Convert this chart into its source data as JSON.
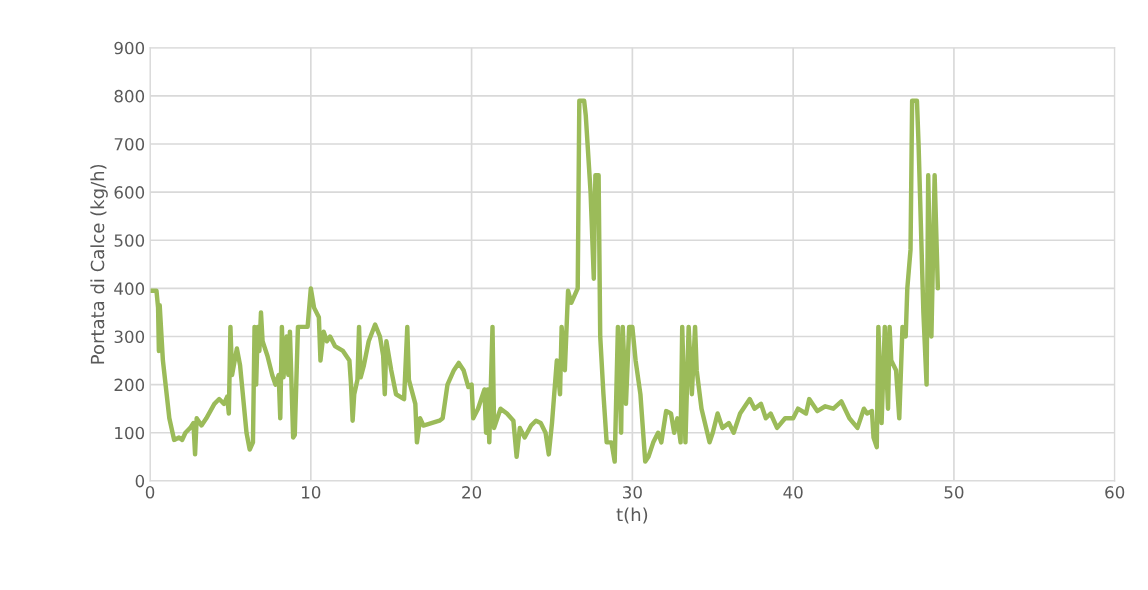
{
  "chart_data": {
    "type": "line",
    "xlabel": "t(h)",
    "ylabel": "Portata di Calce (kg/h)",
    "xlim": [
      0,
      60
    ],
    "xticks": [
      0,
      10,
      20,
      30,
      40,
      50,
      60
    ],
    "ylim": [
      0,
      900
    ],
    "yticks": [
      0,
      100,
      200,
      300,
      400,
      500,
      600,
      700,
      800,
      900
    ],
    "grid": true,
    "marker": "none",
    "line_style": "solid",
    "series": [
      {
        "color": "#9bbb59",
        "x": [
          0,
          0.4,
          0.5,
          0.55,
          0.6,
          0.8,
          1.2,
          1.5,
          1.8,
          2.0,
          2.2,
          2.5,
          2.7,
          2.8,
          2.9,
          3.2,
          3.5,
          4.0,
          4.3,
          4.6,
          4.8,
          4.9,
          5.0,
          5.1,
          5.4,
          5.6,
          6.0,
          6.2,
          6.4,
          6.5,
          6.6,
          6.7,
          6.8,
          6.9,
          7.0,
          7.3,
          7.6,
          7.8,
          8.0,
          8.1,
          8.2,
          8.3,
          8.5,
          8.6,
          8.7,
          8.9,
          9.0,
          9.2,
          9.8,
          10.0,
          10.2,
          10.5,
          10.6,
          10.8,
          11.0,
          11.2,
          11.5,
          12.0,
          12.4,
          12.5,
          12.6,
          12.7,
          12.9,
          13.0,
          13.1,
          13.3,
          13.6,
          14.0,
          14.3,
          14.5,
          14.6,
          14.7,
          15.0,
          15.3,
          15.8,
          16.0,
          16.1,
          16.5,
          16.6,
          16.8,
          17.0,
          17.5,
          18.0,
          18.2,
          18.5,
          18.9,
          19.2,
          19.5,
          19.8,
          20.0,
          20.1,
          20.4,
          20.8,
          20.9,
          21.0,
          21.1,
          21.3,
          21.4,
          21.8,
          22.2,
          22.6,
          22.8,
          23.0,
          23.3,
          23.7,
          24.0,
          24.3,
          24.6,
          24.8,
          25.0,
          25.3,
          25.5,
          25.6,
          25.8,
          26.0,
          26.2,
          26.6,
          26.7,
          27.0,
          27.1,
          27.4,
          27.6,
          27.7,
          27.9,
          28.0,
          28.2,
          28.4,
          28.7,
          28.9,
          29.1,
          29.3,
          29.4,
          29.6,
          29.8,
          30.0,
          30.2,
          30.5,
          30.8,
          31.0,
          31.3,
          31.6,
          31.8,
          32.1,
          32.4,
          32.6,
          32.8,
          33.0,
          33.1,
          33.3,
          33.5,
          33.7,
          33.9,
          34.0,
          34.3,
          34.8,
          35.0,
          35.3,
          35.6,
          36.0,
          36.3,
          36.7,
          37.0,
          37.3,
          37.6,
          38.0,
          38.3,
          38.6,
          39.0,
          39.5,
          40.0,
          40.3,
          40.8,
          41.0,
          41.5,
          42.0,
          42.5,
          43.0,
          43.5,
          44.0,
          44.4,
          44.6,
          44.9,
          45.0,
          45.2,
          45.3,
          45.5,
          45.7,
          45.9,
          46.0,
          46.1,
          46.4,
          46.6,
          46.8,
          47.0,
          47.1,
          47.3,
          47.4,
          47.7,
          47.8,
          48.1,
          48.3,
          48.4,
          48.6,
          48.8,
          49.0
        ],
        "values": [
          395,
          395,
          360,
          270,
          365,
          250,
          130,
          85,
          90,
          85,
          100,
          110,
          120,
          55,
          130,
          115,
          130,
          160,
          170,
          160,
          175,
          140,
          320,
          220,
          275,
          240,
          100,
          65,
          80,
          320,
          200,
          320,
          270,
          350,
          290,
          260,
          220,
          200,
          220,
          130,
          320,
          215,
          300,
          220,
          310,
          90,
          95,
          320,
          320,
          400,
          360,
          340,
          250,
          310,
          290,
          300,
          280,
          270,
          250,
          200,
          125,
          180,
          210,
          320,
          215,
          240,
          290,
          325,
          300,
          260,
          180,
          290,
          230,
          180,
          170,
          320,
          210,
          160,
          80,
          130,
          115,
          120,
          125,
          130,
          200,
          230,
          245,
          230,
          195,
          200,
          130,
          150,
          190,
          100,
          190,
          80,
          320,
          110,
          150,
          140,
          125,
          50,
          110,
          90,
          115,
          125,
          120,
          100,
          55,
          120,
          250,
          180,
          320,
          230,
          395,
          370,
          400,
          790,
          790,
          760,
          600,
          420,
          635,
          635,
          300,
          180,
          80,
          80,
          40,
          320,
          100,
          320,
          160,
          320,
          320,
          250,
          180,
          40,
          50,
          80,
          100,
          80,
          145,
          140,
          100,
          130,
          80,
          320,
          80,
          320,
          180,
          320,
          230,
          150,
          80,
          100,
          140,
          110,
          120,
          100,
          140,
          155,
          170,
          150,
          160,
          130,
          140,
          110,
          130,
          130,
          150,
          140,
          170,
          145,
          155,
          150,
          165,
          130,
          110,
          150,
          140,
          145,
          90,
          70,
          320,
          120,
          320,
          150,
          320,
          250,
          230,
          130,
          320,
          300,
          400,
          480,
          790,
          790,
          700,
          350,
          200,
          635,
          300,
          635,
          400
        ]
      }
    ]
  }
}
